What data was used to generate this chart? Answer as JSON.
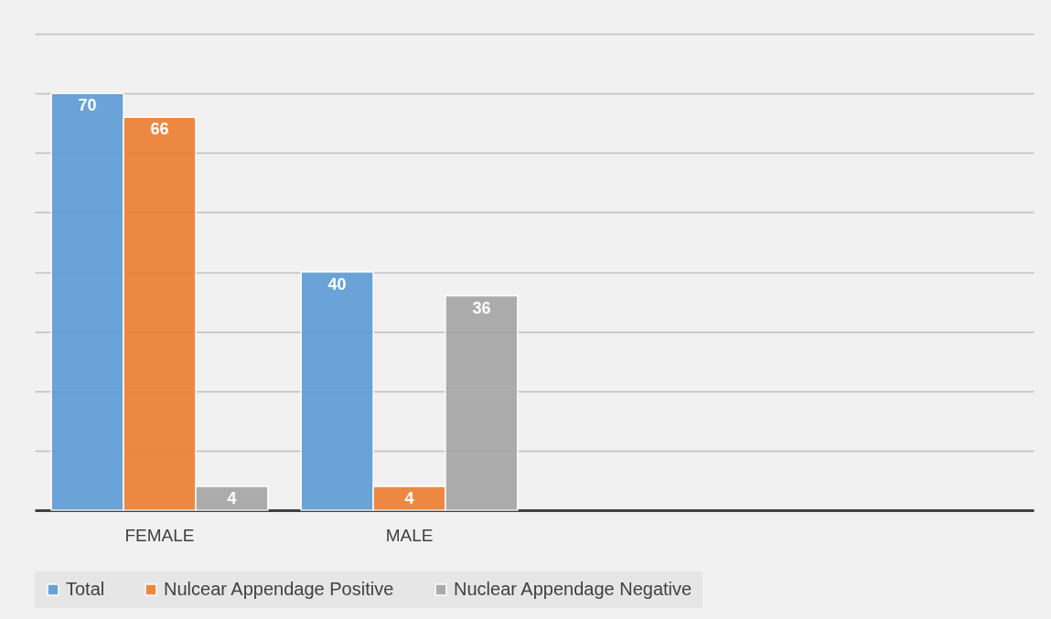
{
  "chart_data": {
    "type": "bar",
    "categories": [
      "FEMALE",
      "MALE",
      null,
      null
    ],
    "series": [
      {
        "name": "Total",
        "color": "#5b9bd5",
        "values": [
          70,
          40,
          null,
          null
        ]
      },
      {
        "name": "Nulcear Appendage Positive",
        "color": "#ed7d31",
        "values": [
          66,
          4,
          null,
          null
        ]
      },
      {
        "name": "Nuclear Appendage Negative",
        "color": "#a5a5a5",
        "values": [
          4,
          36,
          null,
          null
        ]
      }
    ],
    "ylim": [
      0,
      80
    ],
    "yticks": [
      0,
      {
        "value": 10,
        "label": null
      },
      {
        "value": 20,
        "label": null
      },
      {
        "value": 30,
        "label": null
      },
      {
        "value": 40,
        "label": null
      },
      {
        "value": 50,
        "label": null
      },
      {
        "value": 60,
        "label": null
      },
      {
        "value": 70,
        "label": null
      },
      {
        "value": 80,
        "label": null
      }
    ],
    "tick_labels": "x",
    "grid": "y",
    "data_labels": true,
    "legend": "bottom"
  }
}
